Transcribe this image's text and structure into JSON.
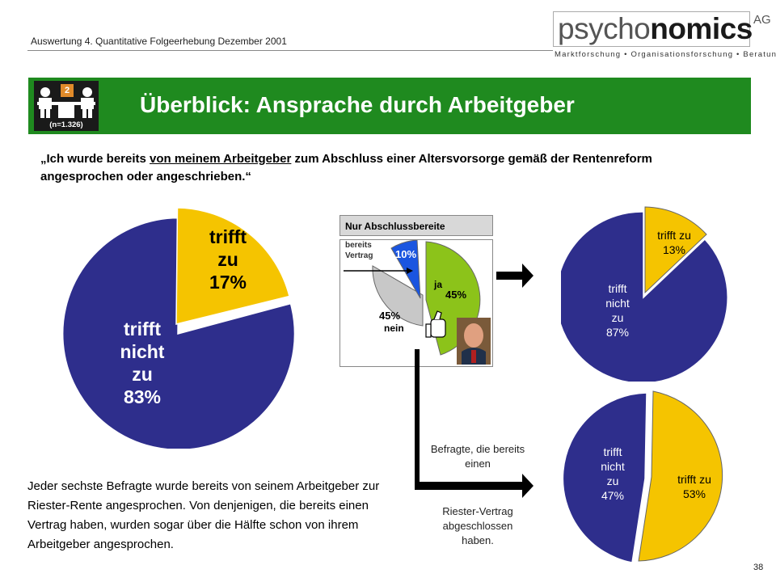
{
  "header": {
    "subtitle": "Auswertung 4. Quantitative Folgeerhebung Dezember 2001"
  },
  "logo": {
    "word_part1": "psycho",
    "word_part2": "nomics",
    "suffix": "AG",
    "tagline": "Marktforschung • Organisationsforschung • Beratung"
  },
  "banner": {
    "title": "Überblick: Ansprache durch Arbeitgeber",
    "badge_number": "2",
    "sample_size": "(n=1.326)",
    "color": "#1f8a1f"
  },
  "question": {
    "part1": "„Ich wurde bereits ",
    "underlined": "von meinem Arbeitgeber",
    "part2": " zum Abschluss einer Altersvorsorge gemäß der Rentenreform angesprochen oder angeschrieben.“"
  },
  "main_pie": {
    "yes_line1": "trifft",
    "yes_line2": "zu",
    "yes_pct": "17%",
    "no_line1": "trifft",
    "no_line2": "nicht",
    "no_line3": "zu",
    "no_pct": "83%"
  },
  "small_box": {
    "header": "Nur Abschlussbereite",
    "contract_label_1": "bereits",
    "contract_label_2": "Vertrag",
    "contract_pct": "10%",
    "yes_label": "ja",
    "yes_pct": "45%",
    "no_pct": "45%",
    "no_label": "nein"
  },
  "right_top_pie": {
    "yes_label_1": "trifft zu",
    "yes_pct": "13%",
    "no_label_1": "trifft",
    "no_label_2": "nicht",
    "no_label_3": "zu",
    "no_pct": "87%"
  },
  "right_bottom_pie": {
    "yes_label_1": "trifft zu",
    "yes_pct": "53%",
    "no_label_1": "trifft",
    "no_label_2": "nicht",
    "no_label_3": "zu",
    "no_pct": "47%"
  },
  "captions": {
    "line1": "Befragte, die bereits einen",
    "line2": "Riester-Vertrag abgeschlossen haben."
  },
  "summary": "Jeder sechste Befragte wurde bereits von seinem Arbeitgeber zur Riester-Rente angesprochen. Von denjenigen, die bereits einen Vertrag haben, wurden sogar über die Hälfte schon von ihrem Arbeitgeber angesprochen.",
  "page_number": "38",
  "colors": {
    "yes": "#f5c400",
    "no": "#2e2e8c",
    "small_yes": "#8cc31a",
    "small_no": "#c8c8c8",
    "small_contract": "#1a55e0"
  }
}
